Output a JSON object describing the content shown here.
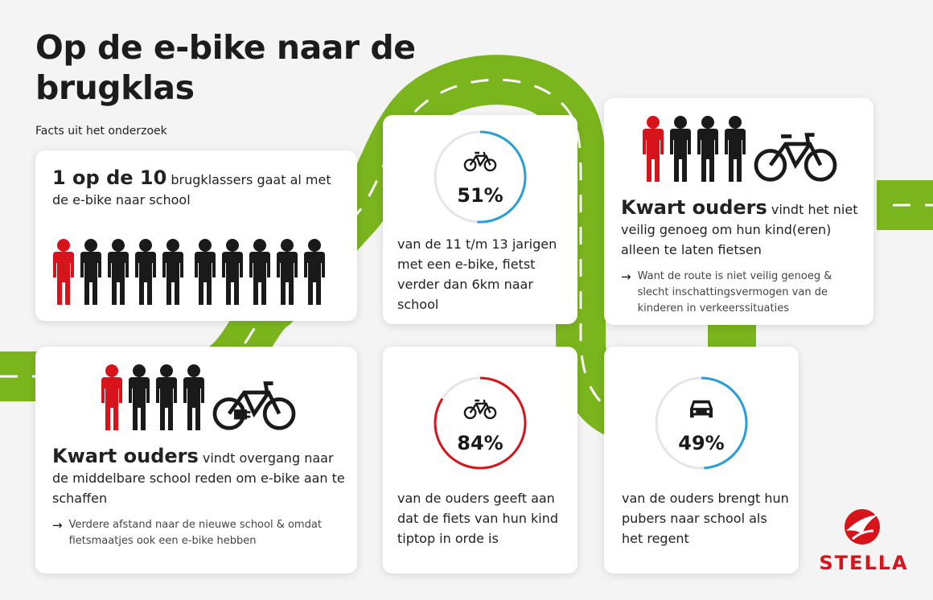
{
  "header": {
    "title": "Op de e-bike naar de brugklas",
    "subtitle": "Facts uit het onderzoek"
  },
  "card1": {
    "headline": "1 op de 10",
    "text": "brugklassers gaat al met de e-bike naar school",
    "people_total": 10,
    "people_highlighted": 1
  },
  "card2": {
    "percent": "51%",
    "percent_value": 51,
    "icon": "ebike-icon",
    "text": "van de 11 t/m 13 jarigen met een e-bike, fietst verder dan 6km naar school",
    "ring_color": "#2a9fd6"
  },
  "card3": {
    "headline": "Kwart ouders",
    "text": "vindt het niet veilig genoeg om hun kind(eren) alleen te laten fietsen",
    "note": "Want de route is niet veilig genoeg & slecht inschattingsvermogen van de kinderen in verkeerssituaties",
    "icon": "bicycle-icon"
  },
  "card4": {
    "headline": "Kwart ouders",
    "text": "vindt overgang naar de middelbare school reden om e-bike aan te schaffen",
    "note": "Verdere afstand naar de nieuwe school & omdat fietsmaatjes ook een e-bike hebben",
    "icon": "ebike-plug-icon"
  },
  "card5": {
    "percent": "84%",
    "percent_value": 84,
    "icon": "ebike-icon",
    "text": "van de ouders geeft aan dat de fiets van hun kind tiptop in orde is",
    "ring_color": "#d7141c"
  },
  "card6": {
    "percent": "49%",
    "percent_value": 49,
    "icon": "car-icon",
    "text": "van de ouders brengt hun pubers naar school als het regent",
    "ring_color": "#2a9fd6"
  },
  "brand": {
    "name": "STELLA",
    "color": "#d7141c"
  },
  "colors": {
    "road": "#7ab51d",
    "red": "#d7141c",
    "blue": "#2a9fd6",
    "dark": "#1a1a1a"
  }
}
